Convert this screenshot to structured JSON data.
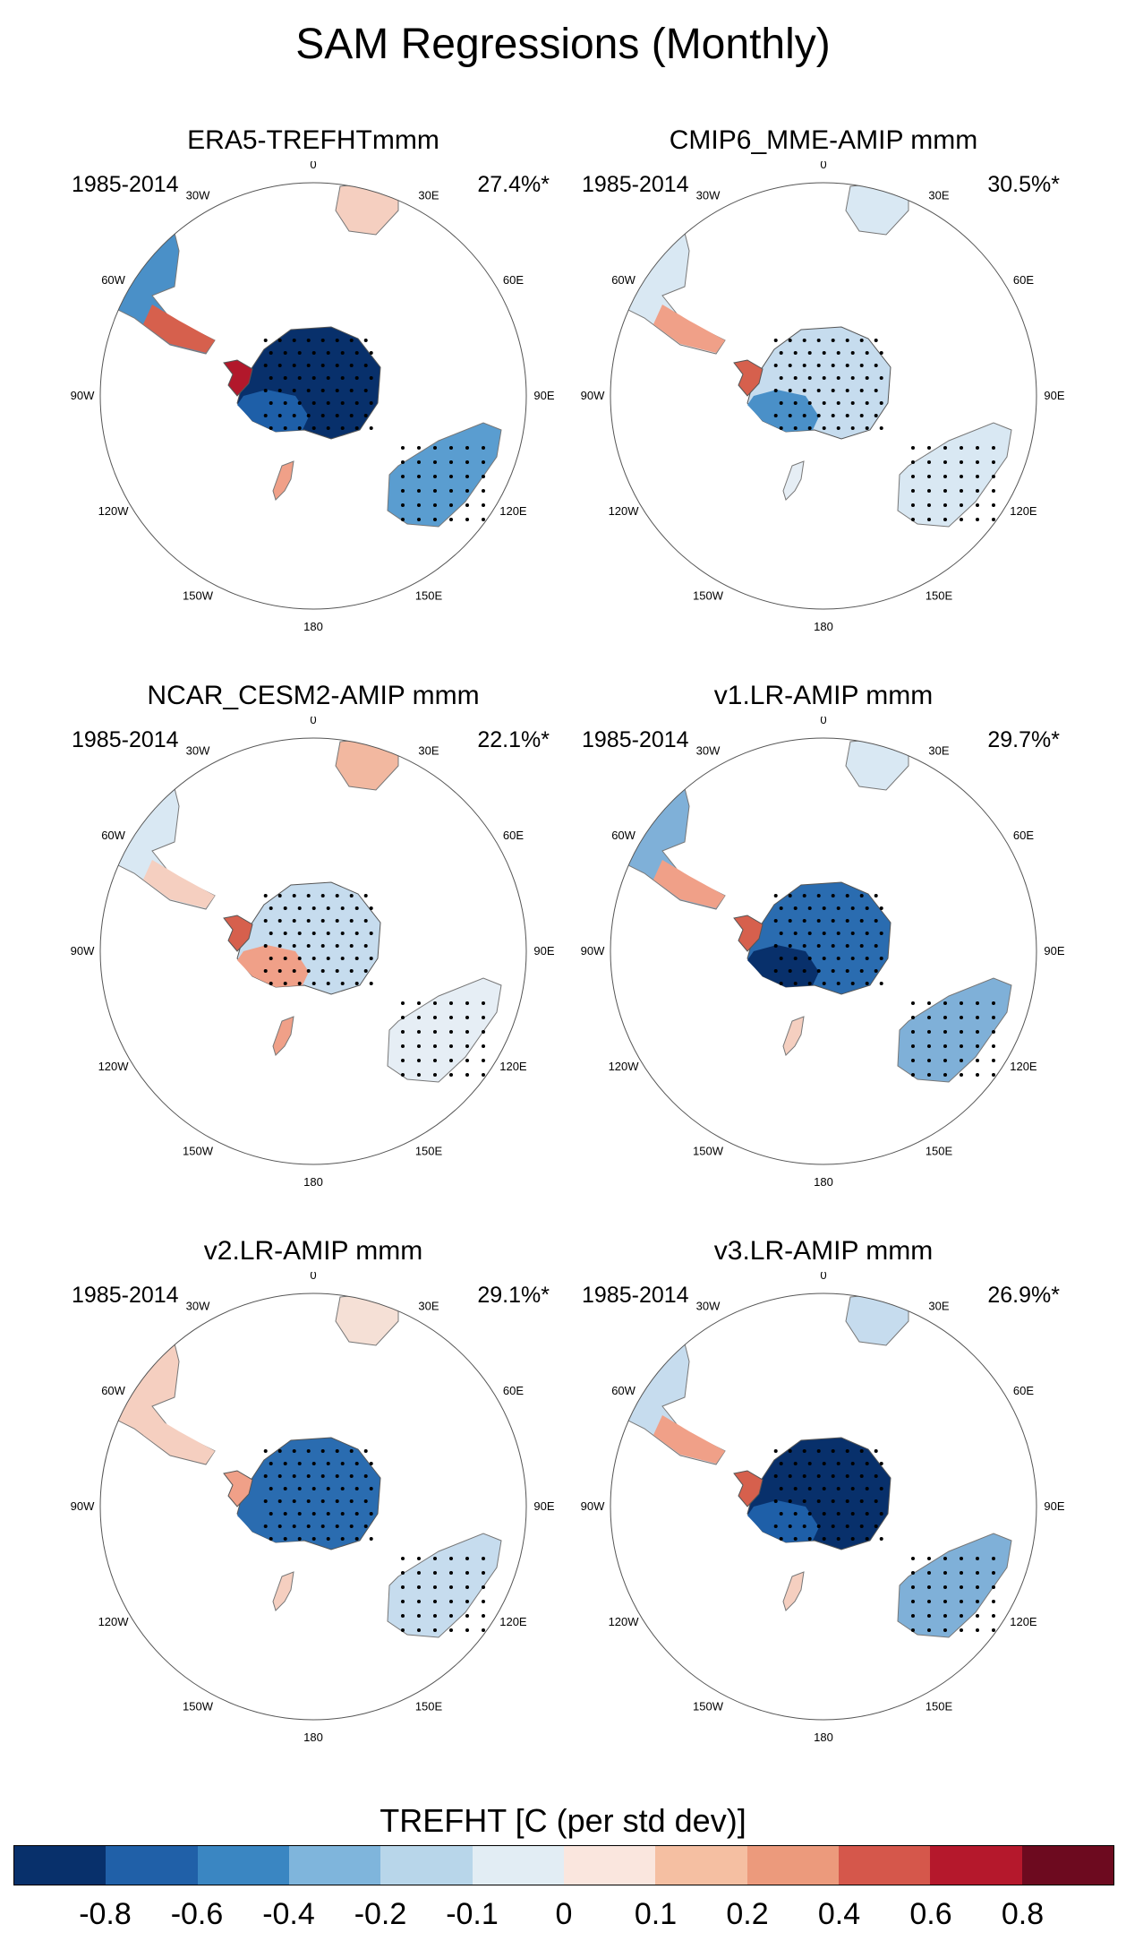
{
  "title": "SAM Regressions (Monthly)",
  "period": "1985-2014",
  "longitude_labels": [
    "0",
    "30E",
    "60E",
    "90E",
    "120E",
    "150E",
    "180",
    "150W",
    "120W",
    "90W",
    "60W",
    "30W"
  ],
  "panels": [
    {
      "title": "ERA5-TREFHTmmm",
      "percent": "27.4%*",
      "antarctica": {
        "east": "#08306b",
        "west": "#1e5fa8",
        "peninsula": "#b2182b"
      },
      "south_america": {
        "north": "#4a90c8",
        "south": "#d6604d"
      },
      "africa": "#f5cfc0",
      "australia": "#5a9dd0",
      "new_zealand": "#f0a088"
    },
    {
      "title": "CMIP6_MME-AMIP  mmm",
      "percent": "30.5%*",
      "antarctica": {
        "east": "#c6dcee",
        "west": "#4a90c8",
        "peninsula": "#d6604d"
      },
      "south_america": {
        "north": "#d9e8f3",
        "south": "#f0a088"
      },
      "africa": "#d9e8f3",
      "australia": "#d9e8f3",
      "new_zealand": "#e6eef5"
    },
    {
      "title": "NCAR_CESM2-AMIP  mmm",
      "percent": "22.1%*",
      "antarctica": {
        "east": "#c6dcee",
        "west": "#f0a088",
        "peninsula": "#d6604d"
      },
      "south_america": {
        "north": "#d9e8f3",
        "south": "#f5cfc0"
      },
      "africa": "#f2b8a0",
      "australia": "#e6eef5",
      "new_zealand": "#f0a088"
    },
    {
      "title": "v1.LR-AMIP  mmm",
      "percent": "29.7%*",
      "antarctica": {
        "east": "#2a6cb0",
        "west": "#08306b",
        "peninsula": "#d6604d"
      },
      "south_america": {
        "north": "#7fb0d8",
        "south": "#f0a088"
      },
      "africa": "#d9e8f3",
      "australia": "#7fb0d8",
      "new_zealand": "#f5cfc0"
    },
    {
      "title": "v2.LR-AMIP  mmm",
      "percent": "29.1%*",
      "antarctica": {
        "east": "#2a6cb0",
        "west": "#2a6cb0",
        "peninsula": "#f0a088"
      },
      "south_america": {
        "north": "#f5cfc0",
        "south": "#f5cfc0"
      },
      "africa": "#f5e0d6",
      "australia": "#c6dcee",
      "new_zealand": "#f5cfc0"
    },
    {
      "title": "v3.LR-AMIP  mmm",
      "percent": "26.9%*",
      "antarctica": {
        "east": "#08306b",
        "west": "#1e5fa8",
        "peninsula": "#d6604d"
      },
      "south_america": {
        "north": "#c6dcee",
        "south": "#f0a088"
      },
      "africa": "#c6dcee",
      "australia": "#7fb0d8",
      "new_zealand": "#f5cfc0"
    }
  ],
  "colorbar": {
    "title": "TREFHT [C (per std dev)]",
    "colors": [
      "#08306b",
      "#2060a8",
      "#3a86c2",
      "#7fb5dc",
      "#b8d6ea",
      "#e2edf4",
      "#fae6de",
      "#f5bfa2",
      "#ec9a7c",
      "#d5574b",
      "#b5182c",
      "#6d0a1f"
    ],
    "labels": [
      "-0.8",
      "-0.6",
      "-0.4",
      "-0.2",
      "-0.1",
      "0",
      "0.1",
      "0.2",
      "0.4",
      "0.6",
      "0.8"
    ]
  }
}
